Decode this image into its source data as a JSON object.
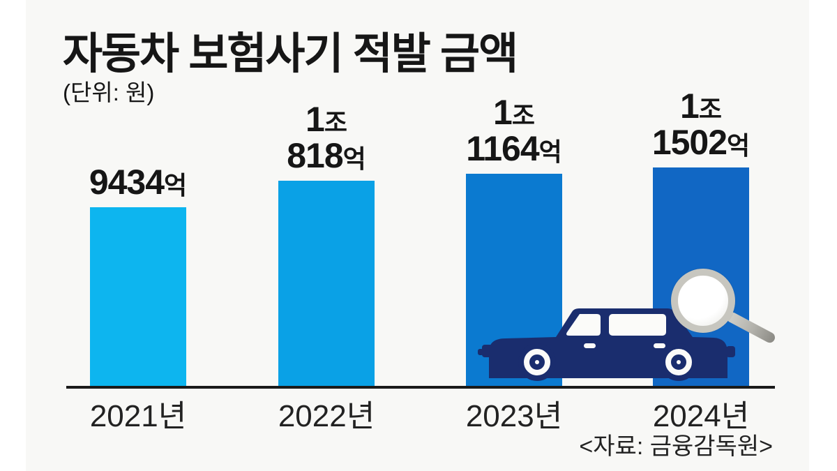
{
  "colors": {
    "page_background": "#ffffff",
    "card_background": "#f8f8f6",
    "text": "#161616",
    "axis_line": "#1a1a1a",
    "car": "#1a2d6e",
    "magnifier_rim": "#c7c6bf"
  },
  "chart_data": {
    "type": "bar",
    "title": "자동차 보험사기 적발 금액",
    "unit_label": "(단위: 원)",
    "source": "<자료: 금융감독원>",
    "categories": [
      "2021년",
      "2022년",
      "2023년",
      "2024년"
    ],
    "values": [
      9434,
      10818,
      11164,
      11502
    ],
    "value_unit": "억 원",
    "ylim": [
      0,
      11502
    ],
    "grid": false,
    "legend": false,
    "bar_colors": [
      "#0db5ef",
      "#0aa1e6",
      "#0b7ad0",
      "#1167c4"
    ],
    "value_labels": [
      {
        "line1_number": "",
        "line1_unit": "",
        "line2_number": "9434",
        "line2_unit": "억"
      },
      {
        "line1_number": "1",
        "line1_unit": "조",
        "line2_number": "818",
        "line2_unit": "억"
      },
      {
        "line1_number": "1",
        "line1_unit": "조",
        "line2_number": "1164",
        "line2_unit": "억"
      },
      {
        "line1_number": "1",
        "line1_unit": "조",
        "line2_number": "1502",
        "line2_unit": "억"
      }
    ],
    "icons": [
      "car-icon",
      "magnifying-glass-icon"
    ]
  }
}
